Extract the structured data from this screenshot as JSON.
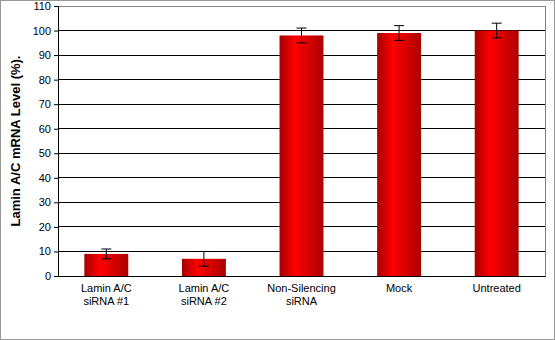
{
  "chart_data": {
    "type": "bar",
    "y_label": "Lamin A/C mRNA Level (%).",
    "categories": [
      "Lamin A/C siRNA #1",
      "Lamin A/C siRNA #2",
      "Non-Silencing siRNA",
      "Mock",
      "Untreated"
    ],
    "values": [
      9,
      7,
      98,
      99,
      100
    ],
    "errors": [
      2,
      3,
      3,
      3,
      3
    ],
    "color": "#cc0000",
    "ylim": [
      0,
      110
    ],
    "yticks": [
      0,
      10,
      20,
      30,
      40,
      50,
      60,
      70,
      80,
      90,
      100,
      110
    ],
    "grid": true
  }
}
